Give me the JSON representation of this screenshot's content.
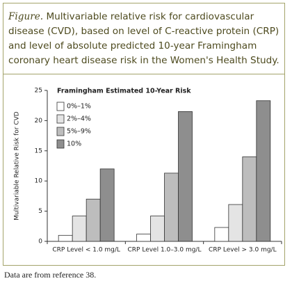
{
  "chart_data": {
    "type": "grouped-bar",
    "title_label": "Figure.",
    "title": "Multivariable relative risk for cardiovascular disease (CVD), based on level of C-reactive protein (CRP) and level of absolute predicted 10-year Framingham coronary heart disease risk in the Women's Health Study.",
    "ylabel": "Multivariable Relative Risk for CVD",
    "legend_title": "Framingham Estimated 10-Year Risk",
    "legend": "upper left",
    "categories": [
      "CRP Level < 1.0 mg/L",
      "CRP Level 1.0–3.0 mg/L",
      "CRP Level > 3.0 mg/L"
    ],
    "series": [
      {
        "name": "0%–1%",
        "color": "#ffffff",
        "values": [
          1.0,
          1.2,
          2.3
        ]
      },
      {
        "name": "2%–4%",
        "color": "#e4e4e4",
        "values": [
          4.2,
          4.2,
          6.1
        ]
      },
      {
        "name": "5%–9%",
        "color": "#bdbdbd",
        "values": [
          7.0,
          11.3,
          14.0
        ]
      },
      {
        "name": "10%",
        "color": "#8e8e8e",
        "values": [
          12.0,
          21.5,
          23.3
        ]
      }
    ],
    "ylim": [
      0,
      25
    ],
    "yticks": [
      0,
      5,
      10,
      15,
      20,
      25
    ]
  },
  "note": "Data are from reference 38."
}
